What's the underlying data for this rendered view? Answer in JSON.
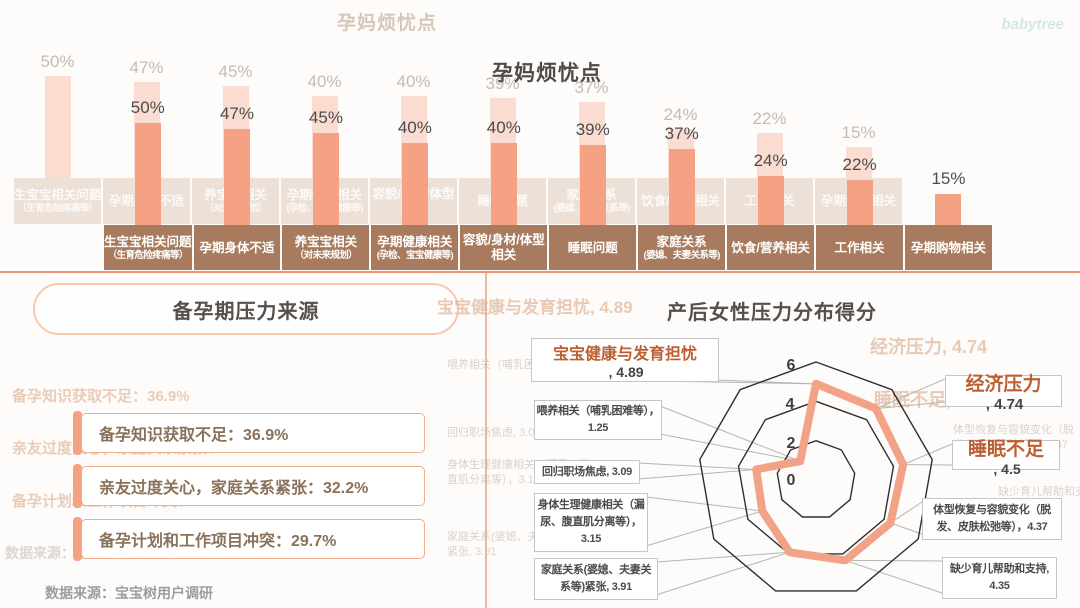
{
  "watermark": "babytree",
  "colors": {
    "bar": "#f4a184",
    "category_band": "#a97b5e",
    "radar_stroke": "#f2a286",
    "emphasis_text": "#bd5f32",
    "divider": "#ee8f7b"
  },
  "top_chart": {
    "title": "孕妈烦忧点",
    "unit": "%",
    "bars": [
      {
        "pct": "50%",
        "value": 50,
        "line1": "生宝宝相关问题",
        "line2": "（生育危险疼痛等）",
        "line2_small": true
      },
      {
        "pct": "47%",
        "value": 47,
        "line1": "孕期身体不适",
        "line2": "",
        "line2_small": false
      },
      {
        "pct": "45%",
        "value": 45,
        "line1": "养宝宝相关",
        "line2": "（对未来规划）",
        "line2_small": true
      },
      {
        "pct": "40%",
        "value": 40,
        "line1": "孕期健康相关",
        "line2": "(孕检、宝宝健康等)",
        "line2_small": true
      },
      {
        "pct": "40%",
        "value": 40,
        "line1": "容貌/身材/体型",
        "line2": "相关",
        "line2_small": false
      },
      {
        "pct": "39%",
        "value": 39,
        "line1": "睡眠问题",
        "line2": "",
        "line2_small": false
      },
      {
        "pct": "37%",
        "value": 37,
        "line1": "家庭关系",
        "line2": "(婆媳、夫妻关系等)",
        "line2_small": true
      },
      {
        "pct": "24%",
        "value": 24,
        "line1": "饮食/营养相关",
        "line2": "",
        "line2_small": false
      },
      {
        "pct": "22%",
        "value": 22,
        "line1": "工作相关",
        "line2": "",
        "line2_small": false
      },
      {
        "pct": "15%",
        "value": 15,
        "line1": "孕期购物相关",
        "line2": "",
        "line2_small": false
      }
    ]
  },
  "left_panel": {
    "title": "备孕期压力来源",
    "items": [
      "备孕知识获取不足：36.9%",
      "亲友过度关心，家庭关系紧张：32.2%",
      "备孕计划和工作项目冲突：29.7%"
    ],
    "source_note": "数据来源：宝宝树用户调研"
  },
  "right_panel": {
    "title": "产后女性压力分布得分",
    "axis_ticks": [
      "6",
      "4",
      "2",
      "0"
    ],
    "max": 6,
    "labels": [
      {
        "name": "宝宝健康与发育担忧",
        "value": 4.89,
        "value_text": ", 4.89",
        "display": "宝宝健康与发育担忧, 4.89",
        "emphasis": true,
        "lines": []
      },
      {
        "name": "经济压力",
        "value": 4.74,
        "value_text": ", 4.74",
        "display": "经济压力, 4.74",
        "emphasis": true,
        "lines": []
      },
      {
        "name": "睡眠不足",
        "value": 4.5,
        "value_text": ", 4.5",
        "display": "睡眠不足, 4.5",
        "emphasis": true,
        "lines": []
      },
      {
        "name": "体型恢复与容貌变化（脱发、皮肤松弛等）",
        "value": 4.37,
        "display": "体型恢复与容貌变化（脱发、皮肤松弛等），4.37",
        "emphasis": false,
        "lines": [
          "体型恢复与容貌变化（脱",
          "发、皮肤松弛等），4.37"
        ]
      },
      {
        "name": "缺少育儿帮助和支持",
        "value": 4.35,
        "display": "缺少育儿帮助和支持, 4.35",
        "emphasis": false,
        "lines": [
          "缺少育儿帮助和支持,",
          "4.35"
        ]
      },
      {
        "name": "家庭关系(婆媳、夫妻关系等)紧张",
        "value": 3.91,
        "display": "家庭关系(婆媳、夫妻关系等)紧张, 3.91",
        "emphasis": false,
        "lines": [
          "家庭关系(婆媳、夫妻关",
          "系等)紧张, 3.91"
        ]
      },
      {
        "name": "身体生理健康相关（漏尿、腹直肌分离等）",
        "value": 3.15,
        "display": "身体生理健康相关（漏尿、腹直肌分离等），3.15",
        "emphasis": false,
        "lines": [
          "身体生理健康相关（漏",
          "尿、腹直肌分离等），",
          "3.15"
        ]
      },
      {
        "name": "回归职场焦虑",
        "value": 3.09,
        "display": "回归职场焦虑, 3.09",
        "emphasis": false,
        "lines": [
          "回归职场焦虑, 3.09"
        ]
      },
      {
        "name": "喂养相关（哺乳困难等）",
        "value": 1.25,
        "display": "喂养相关（哺乳困难等），1.25",
        "emphasis": false,
        "lines": [
          "喂养相关（哺乳困难等），",
          "1.25"
        ]
      }
    ]
  },
  "chart_data": [
    {
      "type": "bar",
      "title": "孕妈烦忧点",
      "categories": [
        "生宝宝相关问题（生育危险疼痛等）",
        "孕期身体不适",
        "养宝宝相关（对未来规划）",
        "孕期健康相关(孕检、宝宝健康等)",
        "容貌/身材/体型相关",
        "睡眠问题",
        "家庭关系(婆媳、夫妻关系等)",
        "饮食/营养相关",
        "工作相关",
        "孕期购物相关"
      ],
      "values": [
        50,
        47,
        45,
        40,
        40,
        39,
        37,
        24,
        22,
        15
      ],
      "unit": "%",
      "xlabel": "",
      "ylabel": "",
      "legend": false,
      "grid": false
    },
    {
      "type": "bar",
      "title": "备孕期压力来源",
      "categories": [
        "备孕知识获取不足",
        "亲友过度关心，家庭关系紧张",
        "备孕计划和工作项目冲突"
      ],
      "values": [
        36.9,
        32.2,
        29.7
      ],
      "unit": "%",
      "source": "数据来源：宝宝树用户调研"
    },
    {
      "type": "radar",
      "title": "产后女性压力分布得分",
      "categories": [
        "宝宝健康与发育担忧",
        "经济压力",
        "睡眠不足",
        "体型恢复与容貌变化（脱发、皮肤松弛等）",
        "缺少育儿帮助和支持",
        "家庭关系(婆媳、夫妻关系等)紧张",
        "身体生理健康相关（漏尿、腹直肌分离等）",
        "回归职场焦虑",
        "喂养相关（哺乳困难等）"
      ],
      "values": [
        4.89,
        4.74,
        4.5,
        4.37,
        4.35,
        3.91,
        3.15,
        3.09,
        1.25
      ],
      "rlim": [
        0,
        6
      ],
      "ticks": [
        0,
        2,
        4,
        6
      ],
      "grid": "polygon-rings",
      "direction": "clockwise-from-top"
    }
  ]
}
